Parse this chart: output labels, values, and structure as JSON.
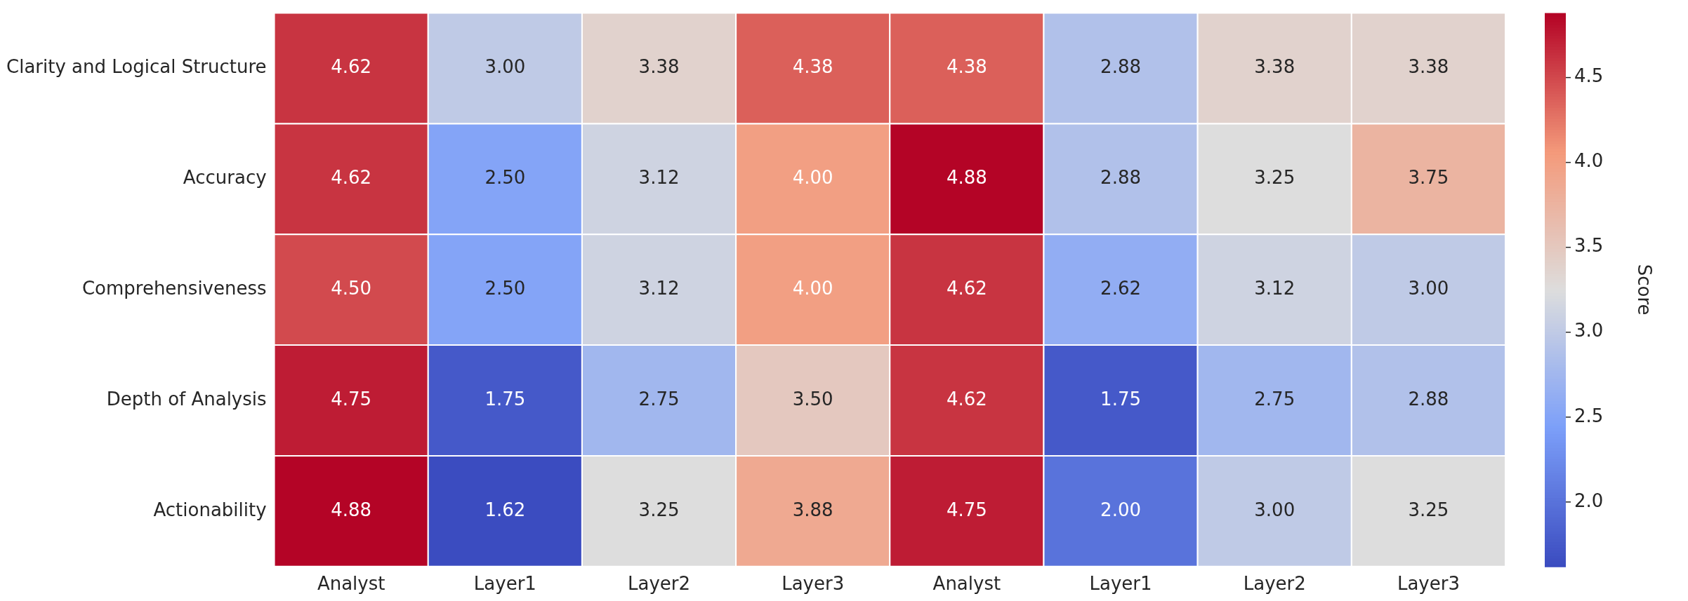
{
  "chart_data": {
    "type": "heatmap",
    "categories": [
      "Analyst",
      "Layer1",
      "Layer2",
      "Layer3",
      "Analyst",
      "Layer1",
      "Layer2",
      "Layer3"
    ],
    "y_categories": [
      "Clarity and Logical Structure",
      "Accuracy",
      "Comprehensiveness",
      "Depth of Analysis",
      "Actionability"
    ],
    "cells": [
      [
        4.62,
        3.0,
        3.38,
        4.38,
        4.38,
        2.88,
        3.38,
        3.38
      ],
      [
        4.62,
        2.5,
        3.12,
        4.0,
        4.88,
        2.88,
        3.25,
        3.75
      ],
      [
        4.5,
        2.5,
        3.12,
        4.0,
        4.62,
        2.62,
        3.12,
        3.0
      ],
      [
        4.75,
        1.75,
        2.75,
        3.5,
        4.62,
        1.75,
        2.75,
        2.88
      ],
      [
        4.88,
        1.62,
        3.25,
        3.88,
        4.75,
        2.0,
        3.0,
        3.25
      ]
    ],
    "cell_labels": [
      [
        "4.62",
        "3.00",
        "3.38",
        "4.38",
        "4.38",
        "2.88",
        "3.38",
        "3.38"
      ],
      [
        "4.62",
        "2.50",
        "3.12",
        "4.00",
        "4.88",
        "2.88",
        "3.25",
        "3.75"
      ],
      [
        "4.50",
        "2.50",
        "3.12",
        "4.00",
        "4.62",
        "2.62",
        "3.12",
        "3.00"
      ],
      [
        "4.75",
        "1.75",
        "2.75",
        "3.50",
        "4.62",
        "1.75",
        "2.75",
        "2.88"
      ],
      [
        "4.88",
        "1.62",
        "3.25",
        "3.88",
        "4.75",
        "2.00",
        "3.00",
        "3.25"
      ]
    ],
    "clim": [
      1.62,
      4.88
    ],
    "cticks": [
      {
        "value": 2,
        "label": "2.0"
      },
      {
        "value": 2.5,
        "label": "2.5"
      },
      {
        "value": 3,
        "label": "3.0"
      },
      {
        "value": 3.5,
        "label": "3.5"
      },
      {
        "value": 4,
        "label": "4.0"
      },
      {
        "value": 4.5,
        "label": "4.5"
      }
    ],
    "clabel": "Score",
    "data_labels": true
  }
}
